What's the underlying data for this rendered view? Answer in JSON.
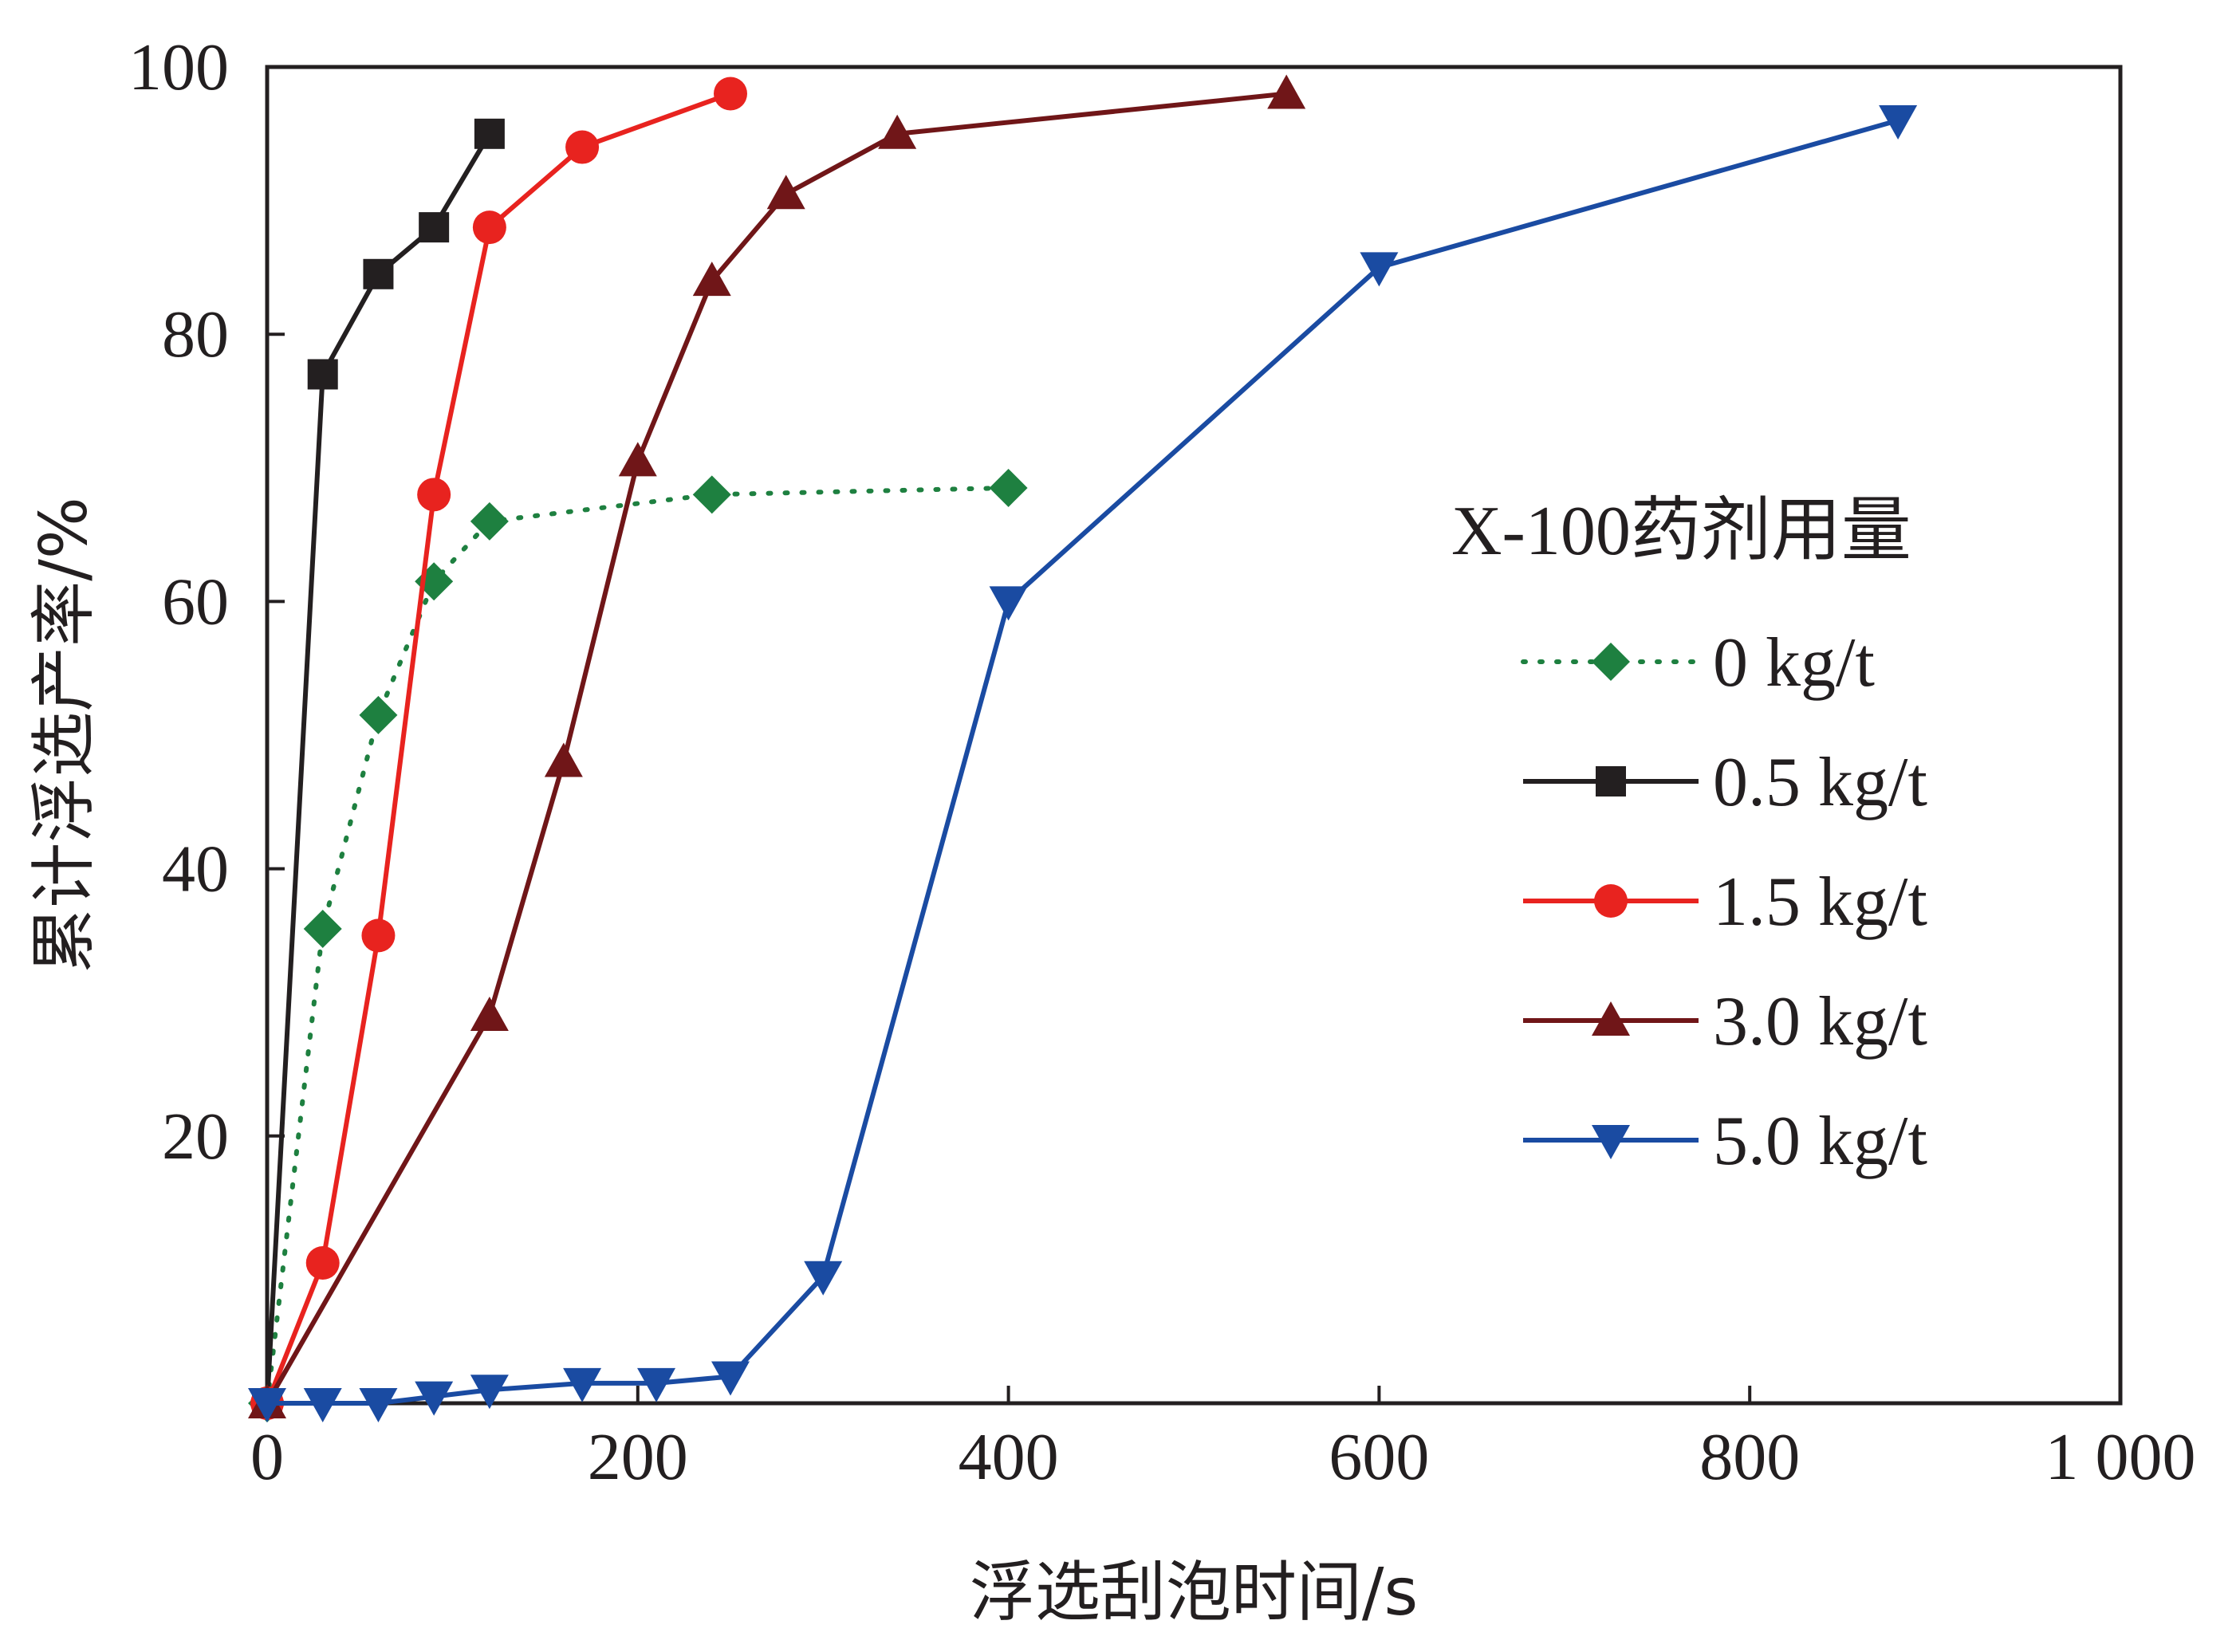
{
  "chart_data": {
    "type": "line",
    "title": "",
    "xlabel": "浮选刮泡时间/s",
    "ylabel": "累计浮选产率/%",
    "xlim": [
      0,
      1000
    ],
    "ylim": [
      0,
      100
    ],
    "x_ticks": [
      0,
      200,
      400,
      600,
      800,
      1000
    ],
    "x_tick_labels": [
      "0",
      "200",
      "400",
      "600",
      "800",
      "1 000"
    ],
    "y_ticks": [
      20,
      40,
      60,
      80,
      100
    ],
    "y_tick_labels": [
      "20",
      "40",
      "60",
      "80",
      "100"
    ],
    "grid": false,
    "legend": {
      "title": "X-100药剂用量",
      "position": "right"
    },
    "series": [
      {
        "name": "0 kg/t",
        "color": "#1e8040",
        "marker": "diamond",
        "line": "dotted",
        "x": [
          0,
          30,
          60,
          90,
          120,
          240,
          400
        ],
        "y": [
          0,
          35.5,
          51.5,
          61.5,
          66,
          68,
          68.5
        ]
      },
      {
        "name": "0.5 kg/t",
        "color": "#231f20",
        "marker": "square",
        "line": "solid",
        "x": [
          0,
          30,
          60,
          90,
          120
        ],
        "y": [
          0,
          77,
          84.5,
          88,
          95
        ]
      },
      {
        "name": "1.5 kg/t",
        "color": "#e8231f",
        "marker": "circle",
        "line": "solid",
        "x": [
          0,
          30,
          60,
          90,
          120,
          170,
          250
        ],
        "y": [
          0,
          10.5,
          35,
          68,
          88,
          94,
          98
        ]
      },
      {
        "name": "3.0 kg/t",
        "color": "#701618",
        "marker": "triangle-up",
        "line": "solid",
        "x": [
          0,
          120,
          160,
          200,
          240,
          280,
          340,
          550
        ],
        "y": [
          0,
          29,
          48,
          70.5,
          84,
          90.5,
          95,
          98
        ]
      },
      {
        "name": "5.0 kg/t",
        "color": "#1a4ba2",
        "marker": "triangle-down",
        "line": "solid",
        "x": [
          0,
          30,
          60,
          90,
          120,
          170,
          210,
          250,
          300,
          400,
          600,
          880
        ],
        "y": [
          0,
          0,
          0,
          0.5,
          1,
          1.5,
          1.5,
          2,
          9.5,
          60,
          85,
          96
        ]
      }
    ]
  }
}
